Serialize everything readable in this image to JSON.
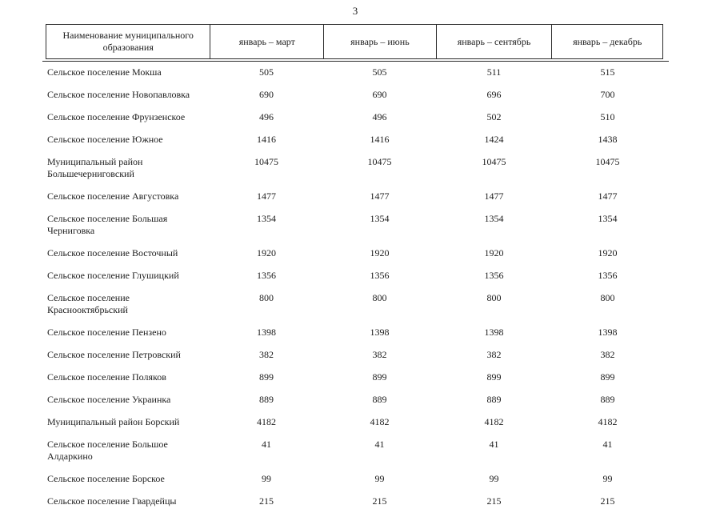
{
  "page_number": "3",
  "table": {
    "headers": [
      "Наименование муниципального образования",
      "январь – март",
      "январь – июнь",
      "январь – сентябрь",
      "январь – декабрь"
    ],
    "rows": [
      {
        "name": "Сельское поселение Мокша",
        "values": [
          "505",
          "505",
          "511",
          "515"
        ]
      },
      {
        "name": "Сельское поселение Новопавловка",
        "values": [
          "690",
          "690",
          "696",
          "700"
        ]
      },
      {
        "name": "Сельское поселение Фрунзенское",
        "values": [
          "496",
          "496",
          "502",
          "510"
        ]
      },
      {
        "name": "Сельское поселение Южное",
        "values": [
          "1416",
          "1416",
          "1424",
          "1438"
        ]
      },
      {
        "name": "Муниципальный район Большечерниговский",
        "values": [
          "10475",
          "10475",
          "10475",
          "10475"
        ]
      },
      {
        "name": "Сельское поселение Августовка",
        "values": [
          "1477",
          "1477",
          "1477",
          "1477"
        ]
      },
      {
        "name": "Сельское поселение Большая Черниговка",
        "values": [
          "1354",
          "1354",
          "1354",
          "1354"
        ]
      },
      {
        "name": "Сельское поселение Восточный",
        "values": [
          "1920",
          "1920",
          "1920",
          "1920"
        ]
      },
      {
        "name": "Сельское поселение Глушицкий",
        "values": [
          "1356",
          "1356",
          "1356",
          "1356"
        ]
      },
      {
        "name": "Сельское поселение Краснооктябрьский",
        "values": [
          "800",
          "800",
          "800",
          "800"
        ]
      },
      {
        "name": "Сельское поселение Пензено",
        "values": [
          "1398",
          "1398",
          "1398",
          "1398"
        ]
      },
      {
        "name": "Сельское поселение Петровский",
        "values": [
          "382",
          "382",
          "382",
          "382"
        ]
      },
      {
        "name": "Сельское поселение Поляков",
        "values": [
          "899",
          "899",
          "899",
          "899"
        ]
      },
      {
        "name": "Сельское поселение Украинка",
        "values": [
          "889",
          "889",
          "889",
          "889"
        ]
      },
      {
        "name": "Муниципальный район Борский",
        "values": [
          "4182",
          "4182",
          "4182",
          "4182"
        ]
      },
      {
        "name": "Сельское поселение Большое Алдаркино",
        "values": [
          "41",
          "41",
          "41",
          "41"
        ]
      },
      {
        "name": "Сельское поселение Борское",
        "values": [
          "99",
          "99",
          "99",
          "99"
        ]
      },
      {
        "name": "Сельское поселение Гвардейцы",
        "values": [
          "215",
          "215",
          "215",
          "215"
        ]
      }
    ]
  }
}
